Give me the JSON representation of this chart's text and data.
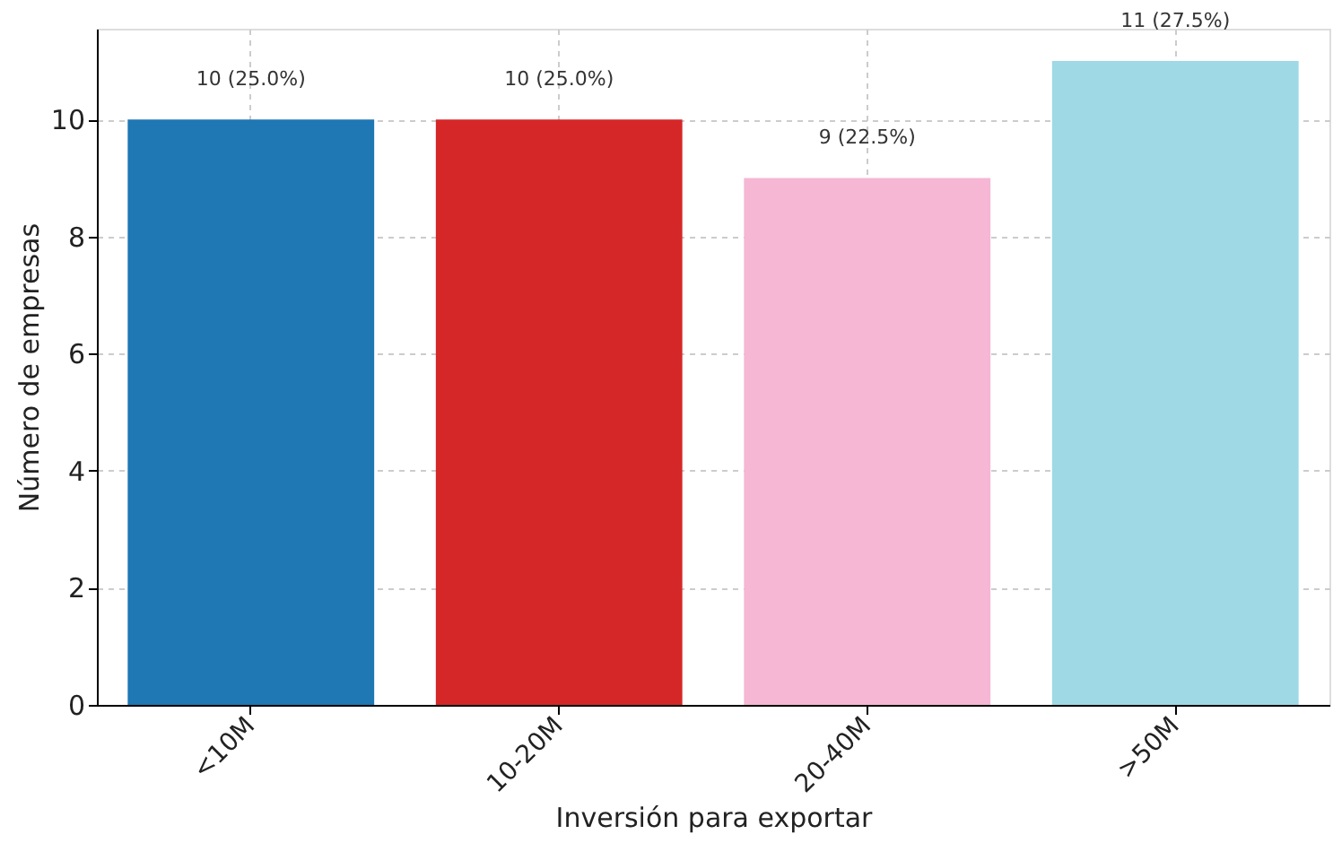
{
  "chart_data": {
    "type": "bar",
    "xlabel": "Inversión para exportar",
    "ylabel": "Número de empresas",
    "categories": [
      "<10M",
      "10-20M",
      "20-40M",
      ">50M"
    ],
    "values": [
      10,
      10,
      9,
      11
    ],
    "colors": [
      "#1f77b4",
      "#d62728",
      "#f5b7d3",
      "#9ed9e5"
    ],
    "value_labels": [
      "10 (25.0%)",
      "10 (25.0%)",
      "9 (22.5%)",
      "11 (27.5%)"
    ],
    "ylim": [
      0,
      11.55
    ],
    "yticks": [
      0,
      2,
      4,
      6,
      8,
      10
    ],
    "grid": true
  }
}
